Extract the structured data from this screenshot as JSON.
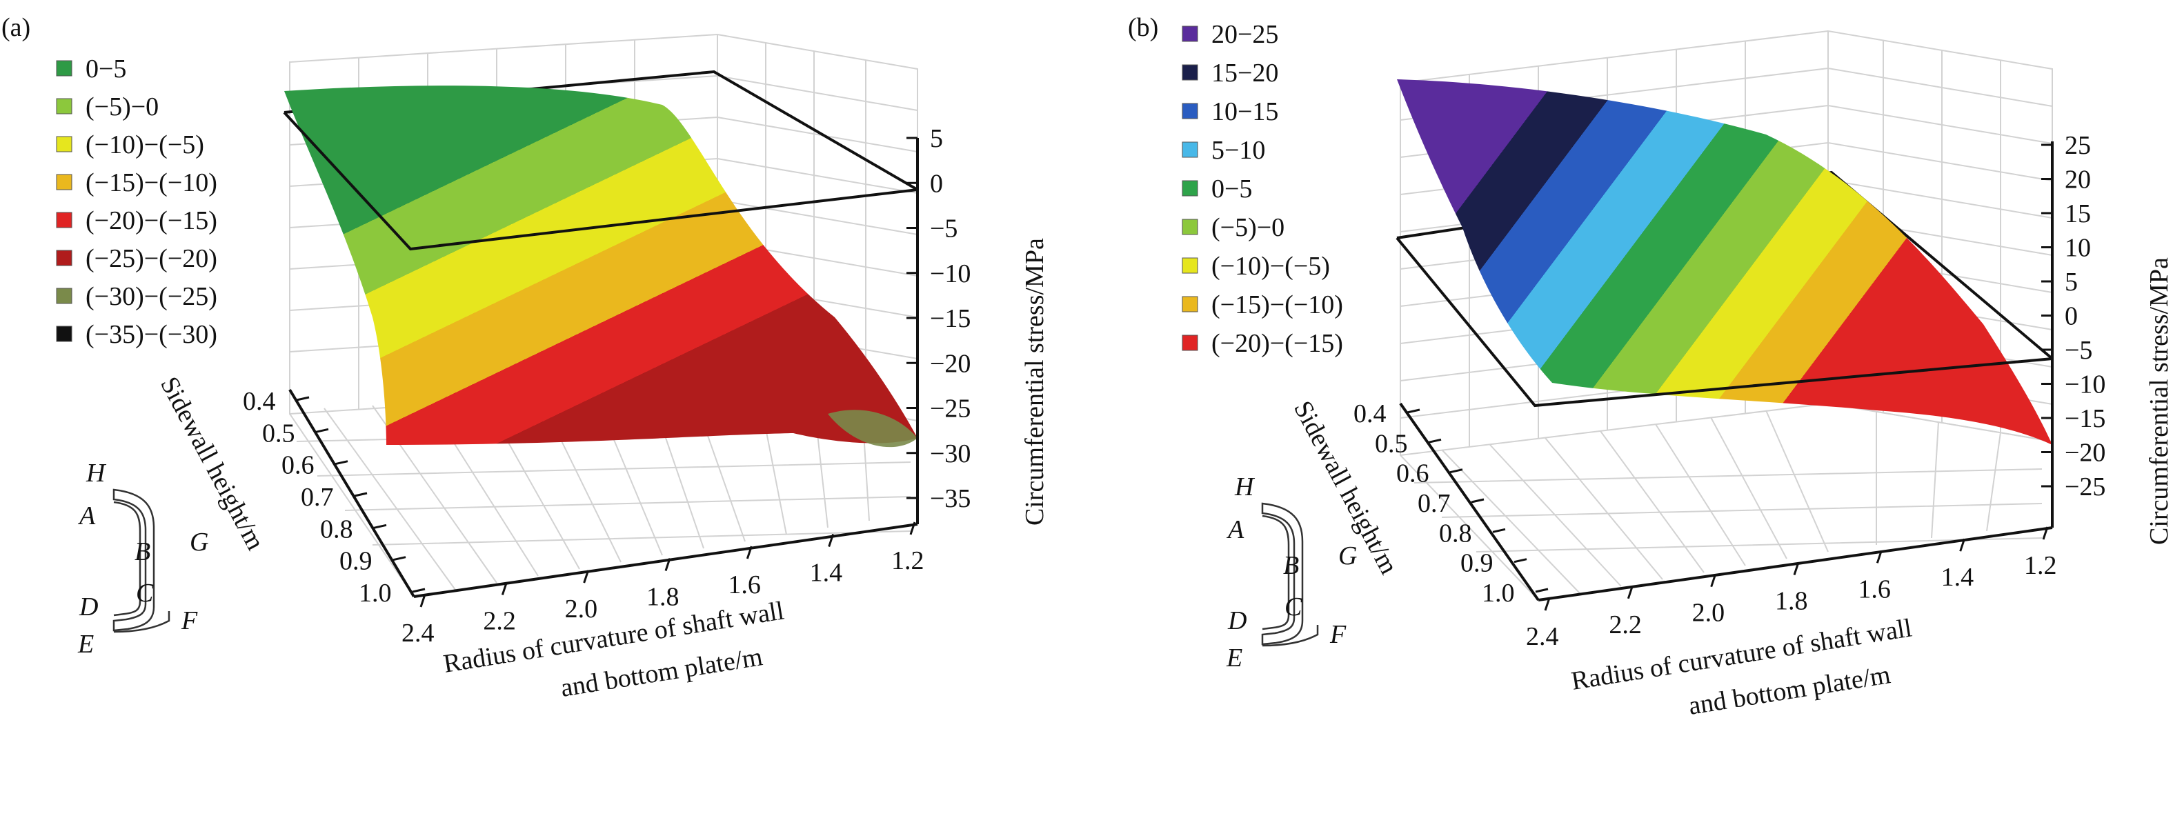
{
  "chart_data": [
    {
      "type": "surface3d",
      "panel_label": "(a)",
      "zlabel": "Circumferential stress/MPa",
      "xlabel_lines": [
        "Radius of curvature of shaft wall",
        "and bottom plate/m"
      ],
      "ylabel": "Sidewall height/m",
      "x_ticks": [
        "2.4",
        "2.2",
        "2.0",
        "1.8",
        "1.6",
        "1.4",
        "1.2"
      ],
      "y_ticks": [
        "0.4",
        "0.5",
        "0.6",
        "0.7",
        "0.8",
        "0.9",
        "1.0"
      ],
      "z_ticks": [
        "5",
        "0",
        "−5",
        "−10",
        "−15",
        "−20",
        "−25",
        "−30",
        "−35"
      ],
      "zlim": [
        -35,
        5
      ],
      "plane_at_z": 0,
      "legend": [
        {
          "label": "0−5",
          "color": "#2e9a45"
        },
        {
          "label": "(−5)−0",
          "color": "#8cc83c"
        },
        {
          "label": "(−10)−(−5)",
          "color": "#e6e61e"
        },
        {
          "label": "(−15)−(−10)",
          "color": "#eab81e"
        },
        {
          "label": "(−20)−(−15)",
          "color": "#e02424"
        },
        {
          "label": "(−25)−(−20)",
          "color": "#b01c1c"
        },
        {
          "label": "(−30)−(−25)",
          "color": "#7a8a4a"
        },
        {
          "label": "(−35)−(−30)",
          "color": "#111111"
        }
      ]
    },
    {
      "type": "surface3d",
      "panel_label": "(b)",
      "zlabel": "Circumferential stress/MPa",
      "xlabel_lines": [
        "Radius of curvature of shaft wall",
        "and bottom plate/m"
      ],
      "ylabel": "Sidewall height/m",
      "x_ticks": [
        "2.4",
        "2.2",
        "2.0",
        "1.8",
        "1.6",
        "1.4",
        "1.2"
      ],
      "y_ticks": [
        "0.4",
        "0.5",
        "0.6",
        "0.7",
        "0.8",
        "0.9",
        "1.0"
      ],
      "z_ticks": [
        "25",
        "20",
        "15",
        "10",
        "5",
        "0",
        "−5",
        "−10",
        "−15",
        "−20",
        "−25"
      ],
      "zlim": [
        -25,
        25
      ],
      "plane_at_z": 0,
      "legend": [
        {
          "label": "20−25",
          "color": "#5a2c9c"
        },
        {
          "label": "15−20",
          "color": "#1a1f4a"
        },
        {
          "label": "10−15",
          "color": "#2a5cc0"
        },
        {
          "label": "5−10",
          "color": "#48b8e8"
        },
        {
          "label": "0−5",
          "color": "#2ea34a"
        },
        {
          "label": "(−5)−0",
          "color": "#8cc83c"
        },
        {
          "label": "(−10)−(−5)",
          "color": "#e6e61e"
        },
        {
          "label": "(−15)−(−10)",
          "color": "#eab81e"
        },
        {
          "label": "(−20)−(−15)",
          "color": "#e02424"
        }
      ]
    }
  ],
  "inset_labels": [
    "H",
    "A",
    "B",
    "G",
    "C",
    "D",
    "F",
    "E"
  ]
}
